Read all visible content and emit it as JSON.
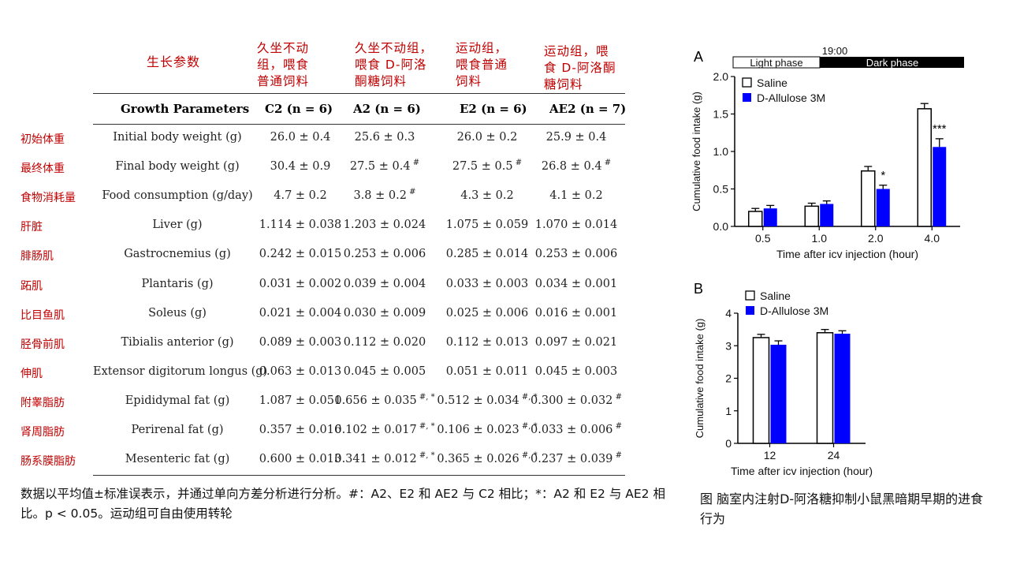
{
  "cn_headers": {
    "param": "生长参数",
    "c2": [
      "久坐不动",
      "组，喂食",
      "普通饲料"
    ],
    "a2": [
      "久坐不动组，",
      "喂食 D-阿洛",
      "酮糖饲料"
    ],
    "e2": [
      "运动组，",
      "喂食普通",
      "饲料"
    ],
    "ae2": [
      "运动组，喂",
      "食 D-阿洛酮",
      "糖饲料"
    ]
  },
  "table": {
    "header": {
      "param": "Growth Parameters",
      "c2": "C2 (n = 6)",
      "a2": "A2 (n = 6)",
      "e2": "E2 (n = 6)",
      "ae2": "AE2 (n = 7)"
    },
    "rows": [
      {
        "cn": "初始体重",
        "param": "Initial body weight (g)",
        "c2": "26.0 ± 0.4",
        "a2": "25.6 ± 0.3",
        "e2": "26.0 ± 0.2",
        "ae2": "25.9 ± 0.4"
      },
      {
        "cn": "最终体重",
        "param": "Final body weight (g)",
        "c2": "30.4 ± 0.9",
        "a2": "27.5 ± 0.4",
        "a2_mark": "#",
        "e2": "27.5 ± 0.5",
        "e2_mark": "#",
        "ae2": "26.8 ± 0.4",
        "ae2_mark": "#"
      },
      {
        "cn": "食物消耗量",
        "param": "Food consumption (g/day)",
        "c2": "4.7 ± 0.2",
        "a2": "3.8 ± 0.2",
        "a2_mark": "#",
        "e2": "4.3 ± 0.2",
        "ae2": "4.1 ± 0.2"
      },
      {
        "cn": "肝脏",
        "param": "Liver (g)",
        "c2": "1.114 ± 0.038",
        "a2": "1.203 ± 0.024",
        "e2": "1.075 ± 0.059",
        "ae2": "1.070 ± 0.014"
      },
      {
        "cn": "腓肠肌",
        "param": "Gastrocnemius (g)",
        "c2": "0.242 ± 0.015",
        "a2": "0.253 ± 0.006",
        "e2": "0.285 ± 0.014",
        "ae2": "0.253 ± 0.006"
      },
      {
        "cn": "跖肌",
        "param": "Plantaris (g)",
        "c2": "0.031 ± 0.002",
        "a2": "0.039 ± 0.004",
        "e2": "0.033 ± 0.003",
        "ae2": "0.034 ± 0.001"
      },
      {
        "cn": "比目鱼肌",
        "param": "Soleus (g)",
        "c2": "0.021 ± 0.004",
        "a2": "0.030 ± 0.009",
        "e2": "0.025 ± 0.006",
        "ae2": "0.016 ± 0.001"
      },
      {
        "cn": "胫骨前肌",
        "param": "Tibialis anterior (g)",
        "c2": "0.089 ± 0.003",
        "a2": "0.112 ± 0.020",
        "e2": "0.112 ± 0.013",
        "ae2": "0.097 ± 0.021"
      },
      {
        "cn": "伸肌",
        "param": "Extensor digitorum longus (g)",
        "c2": "0.063 ± 0.013",
        "a2": "0.045 ± 0.005",
        "e2": "0.051 ± 0.011",
        "ae2": "0.045 ± 0.003"
      },
      {
        "cn": "附睾脂肪",
        "param": "Epididymal fat (g)",
        "c2": "1.087 ± 0.051",
        "a2": "0.656 ± 0.035",
        "a2_mark": "#, *",
        "e2": "0.512 ± 0.034",
        "e2_mark": "#, *",
        "ae2": "0.300 ± 0.032",
        "ae2_mark": "#"
      },
      {
        "cn": "肾周脂肪",
        "param": "Perirenal fat (g)",
        "c2": "0.357 ± 0.016",
        "a2": "0.102 ± 0.017",
        "a2_mark": "#, *",
        "e2": "0.106 ± 0.023",
        "e2_mark": "#, *",
        "ae2": "0.033 ± 0.006",
        "ae2_mark": "#"
      },
      {
        "cn": "肠系膜脂肪",
        "param": "Mesenteric fat (g)",
        "c2": "0.600 ± 0.013",
        "a2": "0.341 ± 0.012",
        "a2_mark": "#, *",
        "e2": "0.365 ± 0.026",
        "e2_mark": "#, *",
        "ae2": "0.237 ± 0.039",
        "ae2_mark": "#"
      }
    ]
  },
  "note": "数据以平均值±标准误表示，并通过单向方差分析进行分析。#：A2、E2 和 AE2 与 C2 相比；*：A2 和 E2 与 AE2 相比。p < 0.05。运动组可自由使用转轮",
  "caption": "图 脑室内注射D-阿洛糖抑制小鼠黑暗期早期的进食行为",
  "colors": {
    "saline": "#ffffff",
    "allulose": "#0000ff",
    "red_text": "#c00000"
  },
  "chart_data": [
    {
      "panel_label": "A",
      "type": "bar",
      "time_marker": "19:00",
      "phases": [
        "Light phase",
        "Dark phase"
      ],
      "categories": [
        "0.5",
        "1.0",
        "2.0",
        "4.0"
      ],
      "series": [
        {
          "name": "Saline",
          "values": [
            0.2,
            0.27,
            0.74,
            1.57
          ],
          "errors": [
            0.04,
            0.04,
            0.06,
            0.07
          ]
        },
        {
          "name": "D-Allulose 3M",
          "values": [
            0.24,
            0.3,
            0.5,
            1.06
          ],
          "errors": [
            0.04,
            0.04,
            0.05,
            0.11
          ]
        }
      ],
      "significance": [
        "",
        "",
        "*",
        "***"
      ],
      "ylabel": "Cumulative food intake (g)",
      "xlabel": "Time after icv injection (hour)",
      "ylim": [
        0,
        2.0
      ],
      "yticks": [
        "0.0",
        "0.5",
        "1.0",
        "1.5",
        "2.0"
      ]
    },
    {
      "panel_label": "B",
      "type": "bar",
      "categories": [
        "12",
        "24"
      ],
      "series": [
        {
          "name": "Saline",
          "values": [
            3.25,
            3.4
          ],
          "errors": [
            0.1,
            0.1
          ]
        },
        {
          "name": "D-Allulose 3M",
          "values": [
            3.03,
            3.37
          ],
          "errors": [
            0.12,
            0.09
          ]
        }
      ],
      "ylabel": "Cumulative food intake (g)",
      "xlabel": "Time after icv injection (hour)",
      "ylim": [
        0,
        4
      ],
      "yticks": [
        "0",
        "1",
        "2",
        "3",
        "4"
      ]
    }
  ]
}
